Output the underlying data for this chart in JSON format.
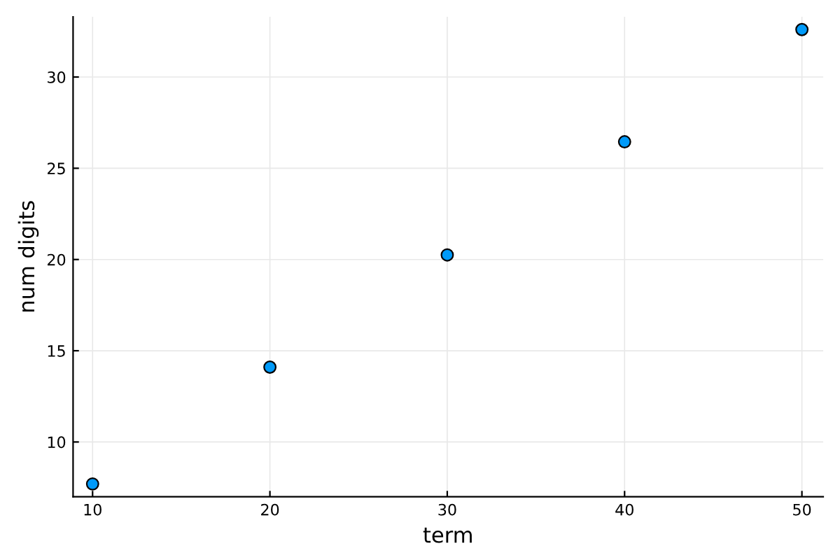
{
  "chart_data": {
    "type": "scatter",
    "xlabel": "term",
    "ylabel": "num digits",
    "x": [
      10,
      20,
      30,
      40,
      50
    ],
    "series": [
      {
        "color": "#009af9",
        "values": [
          7.7,
          14.1,
          20.25,
          26.45,
          32.6
        ]
      }
    ],
    "xlim": [
      8.9,
      51.2
    ],
    "ylim": [
      7.0,
      33.3
    ],
    "xticks": [
      10,
      20,
      30,
      40,
      50
    ],
    "yticks": [
      10,
      15,
      20,
      25,
      30
    ],
    "grid": true,
    "marker": "circle",
    "legend": false
  }
}
